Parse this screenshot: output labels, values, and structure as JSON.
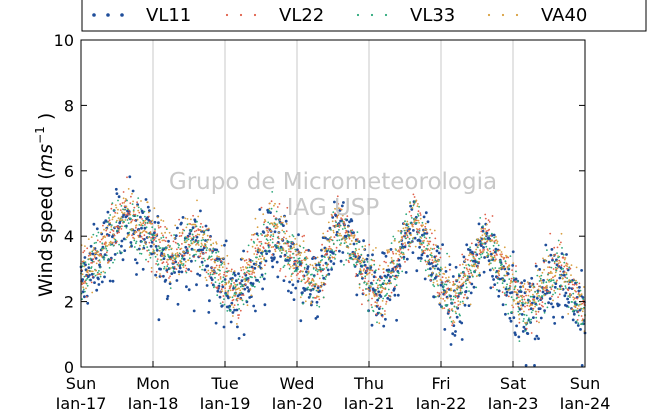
{
  "chart_data": {
    "type": "scatter",
    "title": "",
    "xlabel": "",
    "ylabel": "Wind speed (ms⁻¹)",
    "ylabel_parts": {
      "prefix": "Wind speed (",
      "unit_base": "ms",
      "unit_exp": "−1",
      "suffix": " )"
    },
    "ylim": [
      0,
      10
    ],
    "yticks": [
      "0",
      "2",
      "4",
      "6",
      "8",
      "10"
    ],
    "xlim": [
      "2016-01-17",
      "2016-01-24"
    ],
    "xticks": [
      {
        "day": "Sun",
        "date": "Jan-17"
      },
      {
        "day": "Mon",
        "date": "Jan-18"
      },
      {
        "day": "Tue",
        "date": "Jan-19"
      },
      {
        "day": "Wed",
        "date": "Jan-20"
      },
      {
        "day": "Thu",
        "date": "Jan-21"
      },
      {
        "day": "Fri",
        "date": "Jan-22"
      },
      {
        "day": "Sat",
        "date": "Jan-23"
      },
      {
        "day": "Sun",
        "date": "Jan-24"
      }
    ],
    "grid": "vertical",
    "legend_position": "top",
    "watermark": [
      "Grupo de Micrometeorologia",
      "IAG USP"
    ],
    "series": [
      {
        "name": "VL11",
        "color": "#1f4e9a",
        "marker": "dot"
      },
      {
        "name": "VL22",
        "color": "#e0604a",
        "marker": "dot"
      },
      {
        "name": "VL33",
        "color": "#2ca87a",
        "marker": "dot"
      },
      {
        "name": "VA40",
        "color": "#d9a040",
        "marker": "dot"
      }
    ],
    "typical_values_by_day": [
      {
        "x": "2016-01-17 00:00",
        "y": 2.5
      },
      {
        "x": "2016-01-17 15:00",
        "y": 4.6
      },
      {
        "x": "2016-01-18 06:00",
        "y": 3.2
      },
      {
        "x": "2016-01-18 15:00",
        "y": 3.8
      },
      {
        "x": "2016-01-19 04:00",
        "y": 2.0
      },
      {
        "x": "2016-01-19 16:00",
        "y": 4.2
      },
      {
        "x": "2016-01-20 06:00",
        "y": 2.3
      },
      {
        "x": "2016-01-20 14:00",
        "y": 4.3
      },
      {
        "x": "2016-01-21 04:00",
        "y": 2.0
      },
      {
        "x": "2016-01-21 15:00",
        "y": 4.5
      },
      {
        "x": "2016-01-22 04:00",
        "y": 1.8
      },
      {
        "x": "2016-01-22 15:00",
        "y": 3.8
      },
      {
        "x": "2016-01-23 04:00",
        "y": 1.6
      },
      {
        "x": "2016-01-23 15:00",
        "y": 3.0
      },
      {
        "x": "2016-01-24 00:00",
        "y": 1.5
      }
    ]
  }
}
